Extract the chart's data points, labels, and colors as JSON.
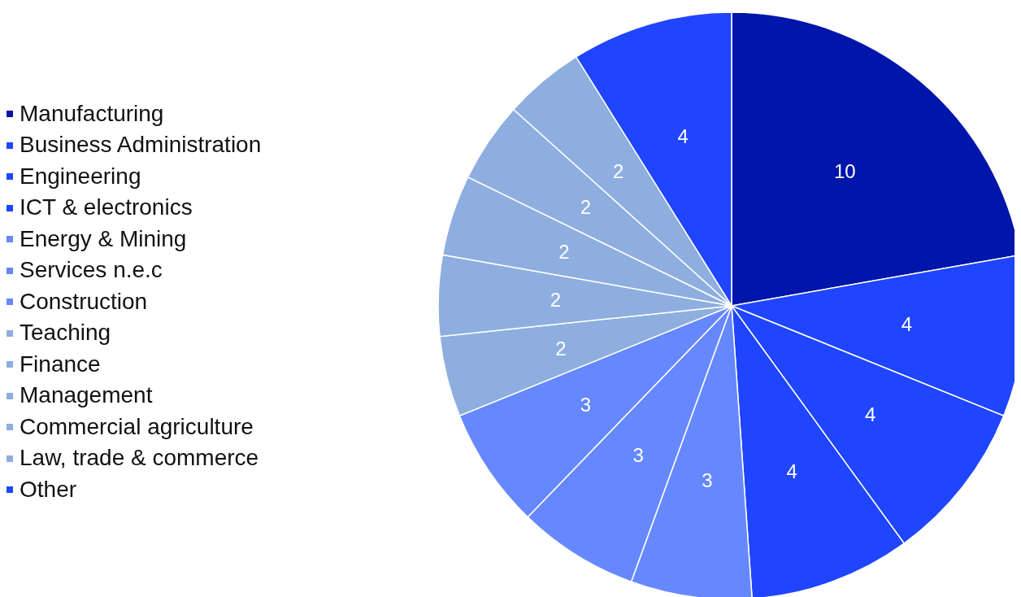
{
  "chart_data": {
    "type": "pie",
    "categories": [
      "Manufacturing",
      "Business Administration",
      "Engineering",
      "ICT & electronics",
      "Energy & Mining",
      "Services n.e.c",
      "Construction",
      "Teaching",
      "Finance",
      "Management",
      "Commercial agriculture",
      "Law, trade & commerce",
      "Other"
    ],
    "values": [
      10,
      4,
      4,
      4,
      3,
      3,
      3,
      2,
      2,
      2,
      2,
      2,
      4
    ],
    "colors": [
      "#0015aa",
      "#1f45ff",
      "#1f45ff",
      "#1f45ff",
      "#6688ff",
      "#6688ff",
      "#6688ff",
      "#8eaee0",
      "#8eaee0",
      "#8eaee0",
      "#8eaee0",
      "#8eaee0",
      "#1f45ff"
    ],
    "data_labels": true,
    "legend": "left"
  }
}
